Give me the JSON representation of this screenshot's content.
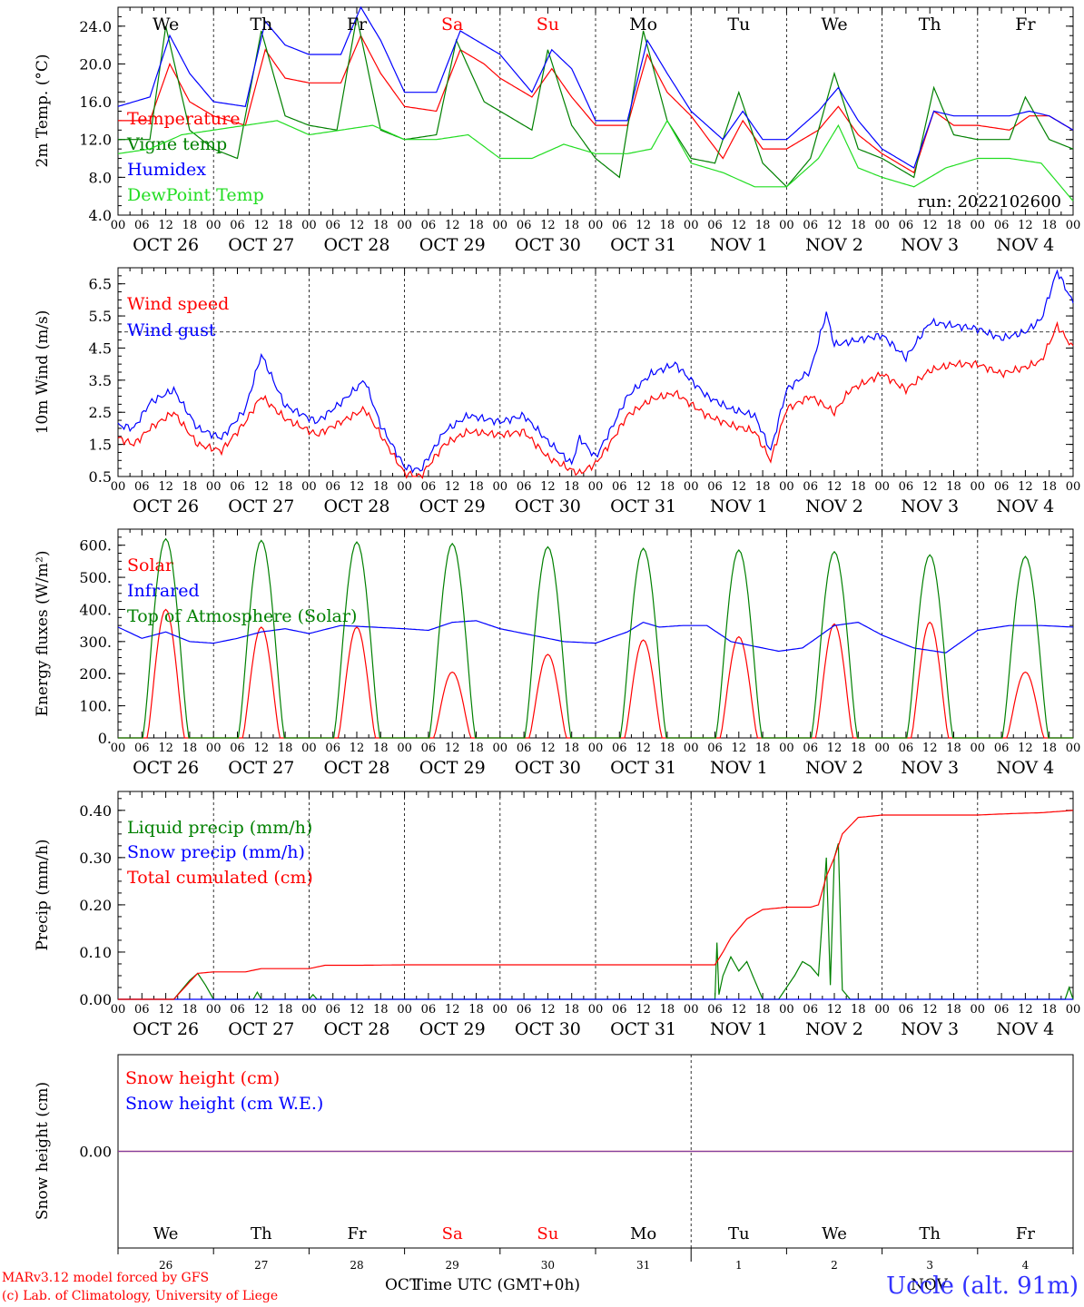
{
  "run_label": "run: 2022102600",
  "footer": {
    "model": "MARv3.12 model forced by GFS",
    "credit": "(c) Lab. of Climatology, University of Liege",
    "station": "Uccle (alt. 91m)",
    "xaxis_title": "Time UTC (GMT+0h)",
    "month_left": "OCT",
    "month_right": "NOV"
  },
  "days": [
    {
      "abbr": "We",
      "date": "OCT 26",
      "num": "26",
      "weekend": false
    },
    {
      "abbr": "Th",
      "date": "OCT 27",
      "num": "27",
      "weekend": false
    },
    {
      "abbr": "Fr",
      "date": "OCT 28",
      "num": "28",
      "weekend": false
    },
    {
      "abbr": "Sa",
      "date": "OCT 29",
      "num": "29",
      "weekend": true
    },
    {
      "abbr": "Su",
      "date": "OCT 30",
      "num": "30",
      "weekend": true
    },
    {
      "abbr": "Mo",
      "date": "OCT 31",
      "num": "31",
      "weekend": false
    },
    {
      "abbr": "Tu",
      "date": "NOV  1",
      "num": "1",
      "weekend": false
    },
    {
      "abbr": "We",
      "date": "NOV  2",
      "num": "2",
      "weekend": false
    },
    {
      "abbr": "Th",
      "date": "NOV  3",
      "num": "3",
      "weekend": false
    },
    {
      "abbr": "Fr",
      "date": "NOV  4",
      "num": "4",
      "weekend": false
    }
  ],
  "hour_labels": [
    "00",
    "06",
    "12",
    "18"
  ],
  "colors": {
    "red": "#ff0000",
    "blue": "#0000ff",
    "green": "#008000",
    "lightgreen": "#22dd22",
    "purple": "#8040a0"
  },
  "chart_data": [
    {
      "id": "temp",
      "type": "line",
      "ylabel": "2m Temp. (°C)",
      "ylim": [
        4,
        26
      ],
      "yticks": [
        "4.0",
        "8.0",
        "12.0",
        "16.0",
        "20.0",
        "24.0"
      ],
      "ytick_values": [
        4,
        8,
        12,
        16,
        20,
        24
      ],
      "x_unit": "hours since OCT 26 00 UTC",
      "xlim": [
        0,
        240
      ],
      "series": [
        {
          "name": "Temperature",
          "color": "red",
          "x": [
            0,
            8,
            13,
            18,
            24,
            32,
            37,
            42,
            48,
            56,
            61,
            66,
            72,
            80,
            86,
            92,
            96,
            104,
            109,
            114,
            120,
            128,
            133,
            138,
            144,
            152,
            157,
            162,
            168,
            176,
            181,
            186,
            192,
            200,
            205,
            210,
            216,
            224,
            229,
            234,
            240
          ],
          "y": [
            14,
            14,
            20,
            16,
            14.5,
            13.5,
            21.5,
            18.5,
            18,
            18,
            23,
            19,
            15.5,
            15,
            21.5,
            20,
            18.5,
            16.5,
            19.5,
            16.5,
            13.5,
            13.5,
            21,
            17,
            14.5,
            10,
            14,
            11,
            11,
            13,
            15.5,
            12.5,
            10.5,
            8.5,
            15,
            13.5,
            13.5,
            13,
            14.5,
            14.5,
            13
          ]
        },
        {
          "name": "Vigne temp",
          "color": "green",
          "x": [
            0,
            8,
            12,
            18,
            24,
            30,
            36,
            42,
            48,
            55,
            60,
            66,
            72,
            80,
            85,
            92,
            96,
            104,
            108,
            114,
            120,
            126,
            132,
            138,
            144,
            150,
            156,
            162,
            168,
            174,
            180,
            186,
            192,
            200,
            205,
            210,
            216,
            224,
            228,
            234,
            240
          ],
          "y": [
            12,
            12,
            24,
            13,
            11,
            10,
            23.5,
            14.5,
            13.5,
            13,
            25,
            13,
            12,
            12.5,
            22.5,
            16,
            15,
            13,
            21.5,
            13.5,
            10,
            8,
            23.5,
            14,
            10,
            9.5,
            17,
            9.5,
            7,
            10,
            19,
            11,
            10,
            8,
            17.5,
            12.5,
            12,
            12,
            16.5,
            12,
            11
          ]
        },
        {
          "name": "Humidex",
          "color": "blue",
          "x": [
            0,
            8,
            13,
            18,
            24,
            32,
            37,
            42,
            48,
            56,
            61,
            66,
            72,
            80,
            86,
            92,
            96,
            104,
            109,
            114,
            120,
            128,
            133,
            138,
            144,
            152,
            157,
            162,
            168,
            176,
            181,
            186,
            192,
            200,
            205,
            210,
            216,
            224,
            229,
            234,
            240
          ],
          "y": [
            15.5,
            16.5,
            23,
            19,
            16,
            15.5,
            24.5,
            22,
            21,
            21,
            26,
            22.5,
            17,
            17,
            23.5,
            22,
            21,
            17,
            21.5,
            19.5,
            14,
            14,
            22.5,
            19,
            15,
            12,
            15,
            12,
            12,
            15,
            17.5,
            14,
            11,
            9,
            15,
            14.5,
            14.5,
            14.5,
            15,
            14.5,
            13
          ]
        },
        {
          "name": "DewPoint Temp",
          "color": "lightgreen",
          "x": [
            0,
            8,
            16,
            24,
            32,
            40,
            48,
            56,
            64,
            72,
            80,
            88,
            96,
            104,
            112,
            120,
            128,
            134,
            138,
            144,
            152,
            160,
            168,
            176,
            181,
            186,
            192,
            200,
            208,
            216,
            224,
            232,
            240
          ],
          "y": [
            10.5,
            11,
            12.5,
            13,
            13.5,
            14,
            12.5,
            13,
            13.5,
            12,
            12,
            12.5,
            10,
            10,
            11.5,
            10.5,
            10.5,
            11,
            14,
            9.5,
            8.5,
            7,
            7,
            10,
            13.5,
            9,
            8,
            7,
            9,
            10,
            10,
            9.5,
            5.5
          ]
        }
      ]
    },
    {
      "id": "wind",
      "type": "line",
      "ylabel": "10m Wind (m/s)",
      "ylim": [
        0.5,
        7
      ],
      "yticks": [
        "0.5",
        "1.5",
        "2.5",
        "3.5",
        "4.5",
        "5.5",
        "6.5"
      ],
      "ytick_values": [
        0.5,
        1.5,
        2.5,
        3.5,
        4.5,
        5.5,
        6.5
      ],
      "reference_line": 5,
      "xlim": [
        0,
        240
      ],
      "series": [
        {
          "name": "Wind speed",
          "color": "red",
          "x": [
            0,
            4,
            8,
            14,
            20,
            26,
            32,
            36,
            42,
            50,
            56,
            62,
            66,
            72,
            76,
            82,
            88,
            96,
            102,
            108,
            114,
            116,
            120,
            124,
            128,
            134,
            140,
            148,
            154,
            160,
            164,
            168,
            174,
            180,
            184,
            192,
            198,
            204,
            210,
            216,
            222,
            228,
            232,
            236,
            240
          ],
          "y": [
            1.7,
            1.5,
            2,
            2.5,
            1.5,
            1.3,
            2.2,
            3,
            2.3,
            1.8,
            2.2,
            2.6,
            1.8,
            0.6,
            0.5,
            1.5,
            1.9,
            1.8,
            1.9,
            1.1,
            0.7,
            0.6,
            0.9,
            1.6,
            2.4,
            2.9,
            3.1,
            2.4,
            2.1,
            1.9,
            1,
            2.6,
            3,
            2.5,
            3.2,
            3.7,
            3.2,
            3.8,
            4,
            4,
            3.7,
            3.9,
            4.1,
            5.2,
            4.5
          ]
        },
        {
          "name": "Wind gust",
          "color": "blue",
          "x": [
            0,
            4,
            8,
            14,
            20,
            26,
            32,
            36,
            42,
            50,
            56,
            62,
            66,
            72,
            76,
            82,
            88,
            96,
            102,
            108,
            114,
            116,
            120,
            124,
            128,
            134,
            140,
            148,
            154,
            160,
            164,
            168,
            174,
            178,
            180,
            184,
            192,
            198,
            204,
            210,
            216,
            222,
            228,
            232,
            236,
            240
          ],
          "y": [
            2.1,
            2,
            2.8,
            3.2,
            2,
            1.7,
            2.6,
            4.3,
            2.7,
            2.2,
            2.8,
            3.5,
            2.1,
            0.8,
            0.7,
            1.9,
            2.4,
            2.2,
            2.4,
            1.6,
            0.9,
            1.7,
            1.1,
            2,
            3,
            3.7,
            4,
            3,
            2.6,
            2.4,
            1.3,
            3.2,
            3.8,
            5.6,
            4.6,
            4.7,
            4.9,
            4.2,
            5.3,
            5.2,
            5.1,
            4.8,
            5,
            5.4,
            6.9,
            5.9
          ]
        }
      ]
    },
    {
      "id": "flux",
      "type": "line",
      "ylabel": "Energy fluxes (W/m²)",
      "ylim": [
        0,
        650
      ],
      "yticks": [
        "0.",
        "100.",
        "200.",
        "300.",
        "400.",
        "500.",
        "600."
      ],
      "ytick_values": [
        0,
        100,
        200,
        300,
        400,
        500,
        600
      ],
      "xlim": [
        0,
        240
      ],
      "solar_peak_hour": 12,
      "series": [
        {
          "name": "Solar",
          "color": "red",
          "daily_peak": [
            400,
            345,
            345,
            205,
            260,
            305,
            315,
            355,
            360,
            205
          ]
        },
        {
          "name": "Infrared",
          "color": "blue",
          "x": [
            0,
            6,
            12,
            18,
            24,
            30,
            36,
            42,
            48,
            56,
            64,
            72,
            78,
            84,
            90,
            96,
            104,
            112,
            120,
            128,
            132,
            136,
            142,
            148,
            154,
            160,
            166,
            172,
            180,
            186,
            192,
            200,
            208,
            216,
            224,
            232,
            240
          ],
          "y": [
            345,
            310,
            330,
            300,
            295,
            310,
            330,
            340,
            325,
            350,
            345,
            340,
            335,
            360,
            365,
            340,
            320,
            300,
            295,
            330,
            360,
            345,
            350,
            350,
            300,
            285,
            270,
            280,
            350,
            360,
            320,
            280,
            265,
            335,
            350,
            350,
            345
          ]
        },
        {
          "name": "Top of Atmosphere (Solar)",
          "color": "green",
          "daily_peak": [
            620,
            615,
            610,
            605,
            595,
            590,
            585,
            580,
            570,
            565
          ]
        }
      ]
    },
    {
      "id": "precip",
      "type": "line",
      "ylabel": "Precip (mm/h)",
      "ylim": [
        0,
        0.44
      ],
      "yticks": [
        "0.00",
        "0.10",
        "0.20",
        "0.30",
        "0.40"
      ],
      "ytick_values": [
        0,
        0.1,
        0.2,
        0.3,
        0.4
      ],
      "xlim": [
        0,
        240
      ],
      "series": [
        {
          "name": "Liquid precip (mm/h)",
          "color": "green",
          "x": [
            0,
            14,
            16,
            18,
            20,
            22,
            24,
            34,
            35,
            36,
            48,
            49,
            50,
            150,
            150.5,
            151,
            152,
            154,
            156,
            158,
            160,
            162,
            166,
            170,
            172,
            174,
            176,
            178,
            179,
            180,
            181,
            182,
            184,
            190,
            238,
            239,
            240
          ],
          "y": [
            0,
            0,
            0.02,
            0.04,
            0.055,
            0.03,
            0,
            0,
            0.015,
            0,
            0,
            0.01,
            0,
            0,
            0.12,
            0.01,
            0.05,
            0.09,
            0.06,
            0.08,
            0.04,
            0,
            0,
            0.05,
            0.08,
            0.07,
            0.05,
            0.3,
            0.03,
            0.3,
            0.33,
            0.02,
            0,
            0,
            0,
            0.025,
            0
          ]
        },
        {
          "name": "Snow precip (mm/h)",
          "color": "blue",
          "x": [
            0,
            240
          ],
          "y": [
            0,
            0
          ]
        },
        {
          "name": "Total cumulated (cm)",
          "color": "red",
          "x": [
            0,
            14,
            20,
            24,
            32,
            36,
            48,
            52,
            60,
            72,
            96,
            120,
            144,
            150,
            152,
            154,
            158,
            162,
            168,
            170,
            172,
            174,
            176,
            178,
            180,
            182,
            186,
            192,
            216,
            224,
            232,
            240
          ],
          "y": [
            0,
            0,
            0.055,
            0.058,
            0.058,
            0.065,
            0.065,
            0.072,
            0.072,
            0.073,
            0.073,
            0.073,
            0.073,
            0.073,
            0.1,
            0.13,
            0.17,
            0.19,
            0.195,
            0.195,
            0.195,
            0.195,
            0.2,
            0.26,
            0.3,
            0.35,
            0.385,
            0.39,
            0.39,
            0.393,
            0.395,
            0.4
          ]
        }
      ]
    },
    {
      "id": "snow",
      "type": "line",
      "ylabel": "Snow height (cm)",
      "ylim": [
        -1,
        1
      ],
      "yticks": [
        "0.00"
      ],
      "ytick_values": [
        0
      ],
      "xlim": [
        0,
        240
      ],
      "series": [
        {
          "name": "Snow height (cm)",
          "color": "red",
          "x": [
            0,
            240
          ],
          "y": [
            0,
            0
          ]
        },
        {
          "name": "Snow height (cm W.E.)",
          "color": "blue",
          "x": [
            0,
            240
          ],
          "y": [
            0,
            0
          ]
        }
      ]
    }
  ]
}
